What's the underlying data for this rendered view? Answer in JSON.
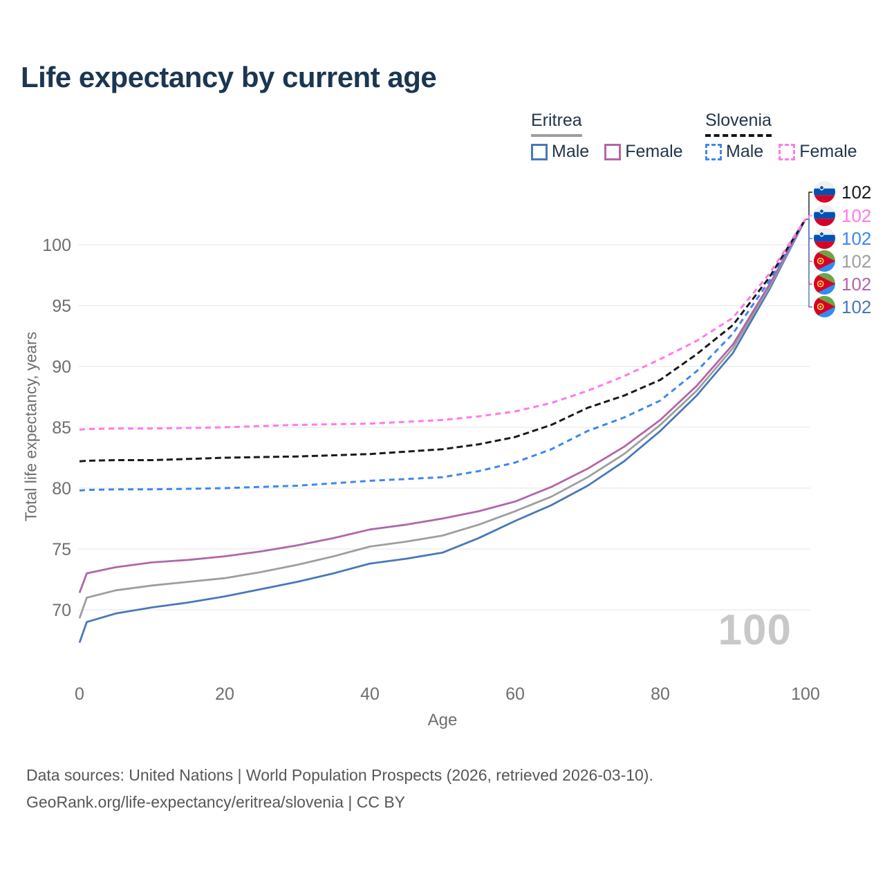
{
  "title": "Life expectancy by current age",
  "legend": {
    "groups": [
      {
        "country": "Eritrea",
        "line_style": "solid",
        "underline_color": "#9e9e9e",
        "items": [
          {
            "label": "Male",
            "color": "#4878b9",
            "swatch": "solid-outline-square"
          },
          {
            "label": "Female",
            "color": "#b365a8",
            "swatch": "solid-outline-square"
          }
        ]
      },
      {
        "country": "Slovenia",
        "line_style": "dashed",
        "underline_color": "#141414",
        "items": [
          {
            "label": "Male",
            "color": "#3d87f0",
            "swatch": "dashed-outline-square"
          },
          {
            "label": "Female",
            "color": "#ff7ae8",
            "swatch": "dashed-outline-square"
          }
        ]
      }
    ]
  },
  "chart_data": {
    "type": "line",
    "title": "Life expectancy by current age",
    "xlabel": "Age",
    "ylabel": "Total life expectancy, years",
    "xlim": [
      0,
      100
    ],
    "ylim": [
      67,
      103
    ],
    "xticks": [
      0,
      20,
      40,
      60,
      80,
      100
    ],
    "yticks": [
      70,
      75,
      80,
      85,
      90,
      95,
      100
    ],
    "grid": "horizontal",
    "legend_position": "top-right",
    "x": [
      0,
      1,
      5,
      10,
      15,
      20,
      25,
      30,
      35,
      40,
      45,
      50,
      55,
      60,
      65,
      70,
      75,
      80,
      85,
      90,
      95,
      100
    ],
    "series": [
      {
        "name": "Eritrea Male",
        "color": "#4878b9",
        "dash": "none",
        "values": [
          67.3,
          69.0,
          69.7,
          70.2,
          70.6,
          71.1,
          71.7,
          72.3,
          73.0,
          73.8,
          74.2,
          74.7,
          75.9,
          77.3,
          78.6,
          80.2,
          82.2,
          84.7,
          87.6,
          91.1,
          96.3,
          102.1
        ]
      },
      {
        "name": "Eritrea average",
        "color": "#9e9e9e",
        "dash": "none",
        "values": [
          69.3,
          71.0,
          71.6,
          72.0,
          72.3,
          72.6,
          73.1,
          73.7,
          74.4,
          75.2,
          75.6,
          76.1,
          77.0,
          78.1,
          79.3,
          80.9,
          82.8,
          85.2,
          88.0,
          91.5,
          96.5,
          102.1
        ]
      },
      {
        "name": "Eritrea Female",
        "color": "#b365a8",
        "dash": "none",
        "values": [
          71.4,
          73.0,
          73.5,
          73.9,
          74.1,
          74.4,
          74.8,
          75.3,
          75.9,
          76.6,
          77.0,
          77.5,
          78.1,
          78.9,
          80.1,
          81.6,
          83.4,
          85.6,
          88.4,
          91.8,
          96.7,
          102.1
        ]
      },
      {
        "name": "Slovenia Male",
        "color": "#3d87f0",
        "dash": "8 6",
        "values": [
          79.8,
          79.85,
          79.9,
          79.9,
          79.95,
          80.0,
          80.1,
          80.2,
          80.4,
          80.6,
          80.75,
          80.9,
          81.4,
          82.1,
          83.2,
          84.7,
          85.8,
          87.2,
          89.6,
          92.7,
          97.0,
          102.1
        ]
      },
      {
        "name": "Slovenia average",
        "color": "#1a1a1a",
        "dash": "9 5",
        "values": [
          82.2,
          82.25,
          82.3,
          82.3,
          82.4,
          82.5,
          82.55,
          82.6,
          82.7,
          82.8,
          83.0,
          83.2,
          83.6,
          84.2,
          85.2,
          86.6,
          87.6,
          88.9,
          91.0,
          93.4,
          97.3,
          102.1
        ]
      },
      {
        "name": "Slovenia Female",
        "color": "#ff7ae8",
        "dash": "8 6",
        "values": [
          84.8,
          84.85,
          84.9,
          84.9,
          84.95,
          85.0,
          85.1,
          85.2,
          85.25,
          85.3,
          85.45,
          85.6,
          85.9,
          86.3,
          87.0,
          88.0,
          89.2,
          90.6,
          92.1,
          94.0,
          97.6,
          102.1
        ]
      }
    ]
  },
  "end_labels": [
    {
      "flag": "slovenia",
      "value": "102",
      "color": "#1a1a1a"
    },
    {
      "flag": "slovenia",
      "value": "102",
      "color": "#ff7ae8"
    },
    {
      "flag": "slovenia",
      "value": "102",
      "color": "#3d87f0"
    },
    {
      "flag": "eritrea",
      "value": "102",
      "color": "#9e9e9e"
    },
    {
      "flag": "eritrea",
      "value": "102",
      "color": "#b365a8"
    },
    {
      "flag": "eritrea",
      "value": "102",
      "color": "#4878b9"
    }
  ],
  "watermark": "100",
  "footer": {
    "line1": "Data sources: United Nations | World Population Prospects (2026, retrieved 2026-03-10).",
    "line2": "GeoRank.org/life-expectancy/eritrea/slovenia | CC BY"
  }
}
